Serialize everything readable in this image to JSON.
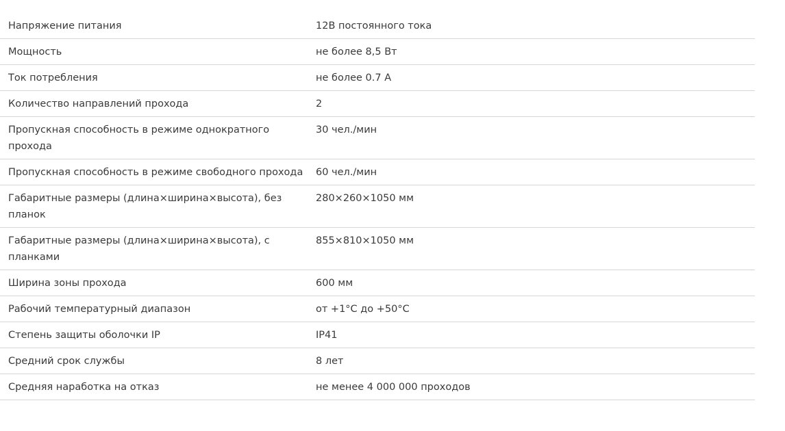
{
  "table": {
    "rows": [
      [
        "Напряжение питания",
        "12В постоянного тока"
      ],
      [
        "Мощность",
        "не более 8,5 Вт"
      ],
      [
        "Ток потребления",
        "не более 0.7 А"
      ],
      [
        "Количество направлений прохода",
        "2"
      ],
      [
        "Пропускная способность в режиме однократного прохода",
        "30 чел./мин"
      ],
      [
        "Пропускная способность в режиме свободного прохода",
        "60 чел./мин"
      ],
      [
        "Габаритные размеры (длина×ширина×высота), без планок",
        "280×260×1050 мм"
      ],
      [
        "Габаритные размеры (длина×ширина×высота), с планками",
        "855×810×1050 мм"
      ],
      [
        "Ширина зоны прохода",
        "600 мм"
      ],
      [
        "Рабочий температурный диапазон",
        "от +1°С до +50°С"
      ],
      [
        "Степень защиты оболочки IP",
        "IP41"
      ],
      [
        "Средний срок службы",
        "8 лет"
      ],
      [
        "Средняя наработка на отказ",
        "не менее 4 000 000 проходов"
      ]
    ]
  }
}
